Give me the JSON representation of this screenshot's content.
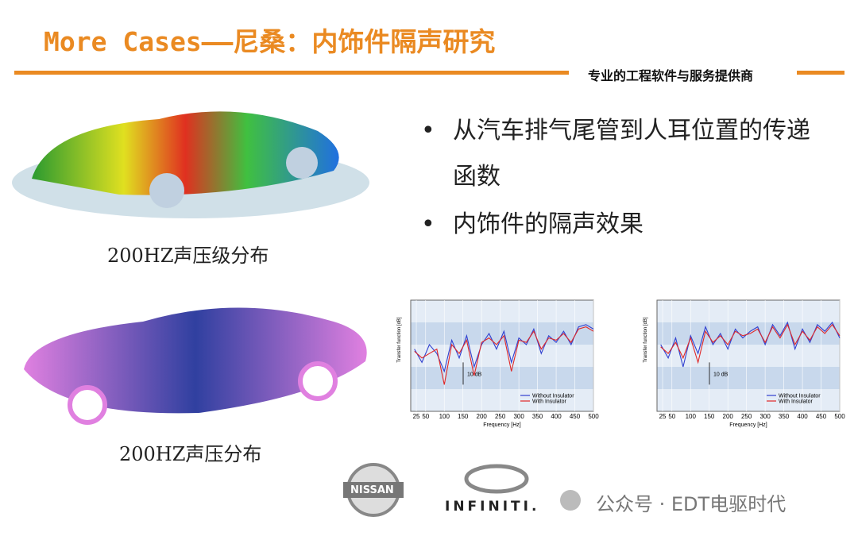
{
  "header": {
    "title": "More Cases——尼桑：内饰件隔声研究",
    "tagline": "专业的工程软件与服务提供商"
  },
  "bullets": [
    "从汽车排气尾管到人耳位置的传递函数",
    "内饰件的隔声效果"
  ],
  "captions": [
    "200HZ声压级分布",
    "200HZ声压分布"
  ],
  "logos": [
    "NISSAN",
    "INFINITI."
  ],
  "watermark": "公众号 · EDT电驱时代",
  "chart_data": [
    {
      "type": "line",
      "xlabel": "Frequency [Hz]",
      "ylabel": "Transfer function [dB]",
      "annotation": "10 dB",
      "x": [
        20,
        40,
        60,
        80,
        100,
        120,
        140,
        160,
        180,
        200,
        220,
        240,
        260,
        280,
        300,
        320,
        340,
        360,
        380,
        400,
        420,
        440,
        460,
        480,
        500
      ],
      "series": [
        {
          "name": "Without Insulator",
          "color": "#3040d0",
          "values": [
            28,
            22,
            30,
            26,
            18,
            32,
            24,
            34,
            20,
            30,
            35,
            28,
            36,
            22,
            33,
            30,
            37,
            26,
            34,
            31,
            36,
            30,
            38,
            39,
            37
          ]
        },
        {
          "name": "With Insulator",
          "color": "#e02828",
          "values": [
            27,
            24,
            26,
            28,
            12,
            30,
            26,
            32,
            16,
            31,
            33,
            30,
            34,
            18,
            32,
            31,
            36,
            28,
            33,
            32,
            35,
            31,
            37,
            38,
            36
          ]
        }
      ],
      "xlim": [
        10,
        500
      ],
      "ylim": [
        0,
        50
      ],
      "xticks": [
        25,
        50,
        100,
        150,
        200,
        250,
        300,
        350,
        400,
        450,
        500
      ]
    },
    {
      "type": "line",
      "xlabel": "Frequency [Hz]",
      "ylabel": "Transfer function [dB]",
      "annotation": "10 dB",
      "x": [
        20,
        40,
        60,
        80,
        100,
        120,
        140,
        160,
        180,
        200,
        220,
        240,
        260,
        280,
        300,
        320,
        340,
        360,
        380,
        400,
        420,
        440,
        460,
        480,
        500
      ],
      "series": [
        {
          "name": "Without Insulator",
          "color": "#3040d0",
          "values": [
            30,
            24,
            33,
            20,
            34,
            26,
            38,
            30,
            35,
            28,
            37,
            33,
            36,
            38,
            30,
            39,
            34,
            40,
            28,
            37,
            31,
            39,
            36,
            40,
            33
          ]
        },
        {
          "name": "With Insulator",
          "color": "#e02828",
          "values": [
            29,
            26,
            31,
            24,
            33,
            22,
            36,
            31,
            34,
            30,
            36,
            34,
            35,
            37,
            31,
            38,
            33,
            39,
            30,
            36,
            32,
            38,
            35,
            39,
            34
          ]
        }
      ],
      "xlim": [
        10,
        500
      ],
      "ylim": [
        0,
        50
      ],
      "xticks": [
        25,
        50,
        100,
        150,
        200,
        250,
        300,
        350,
        400,
        450,
        500
      ]
    }
  ]
}
